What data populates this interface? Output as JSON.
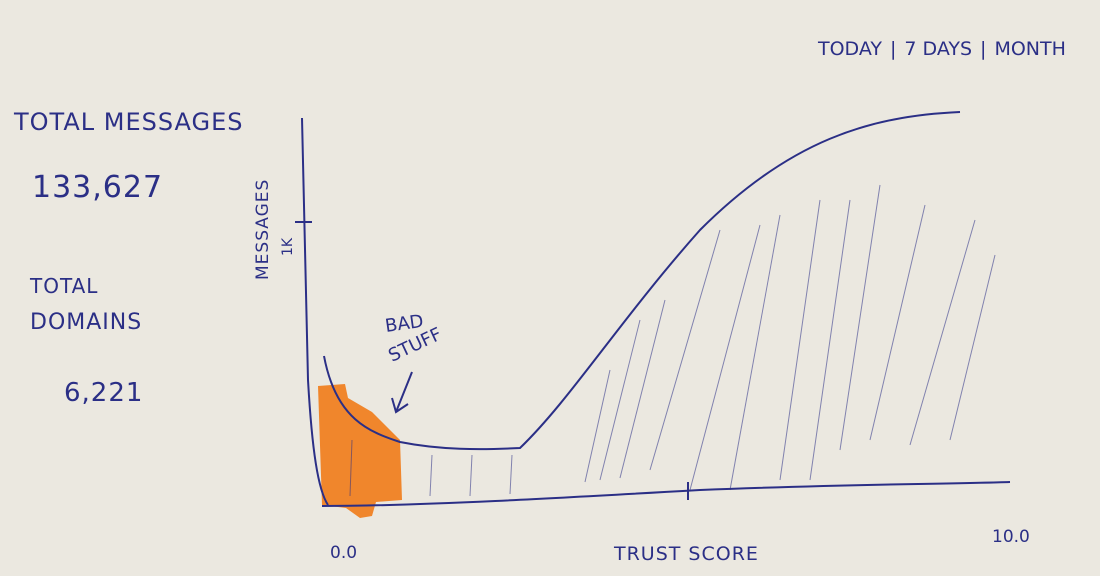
{
  "header": {
    "range_options": [
      "TODAY",
      "7 DAYS",
      "MONTH"
    ],
    "separator": "|"
  },
  "stats": {
    "total_messages_label": "TOTAL MESSAGES",
    "total_messages_value": "133,627",
    "total_domains_label_line1": "TOTAL",
    "total_domains_label_line2": "DOMAINS",
    "total_domains_value": "6,221"
  },
  "chart": {
    "y_label": "MESSAGES",
    "y_tick": "1K",
    "x_label": "TRUST SCORE",
    "x_min_label": "0.0",
    "x_max_label": "10.0",
    "annotation_line1": "BAD",
    "annotation_line2": "STUFF",
    "colors": {
      "ink": "#2b2f86",
      "highlight": "#f07d1c"
    }
  }
}
